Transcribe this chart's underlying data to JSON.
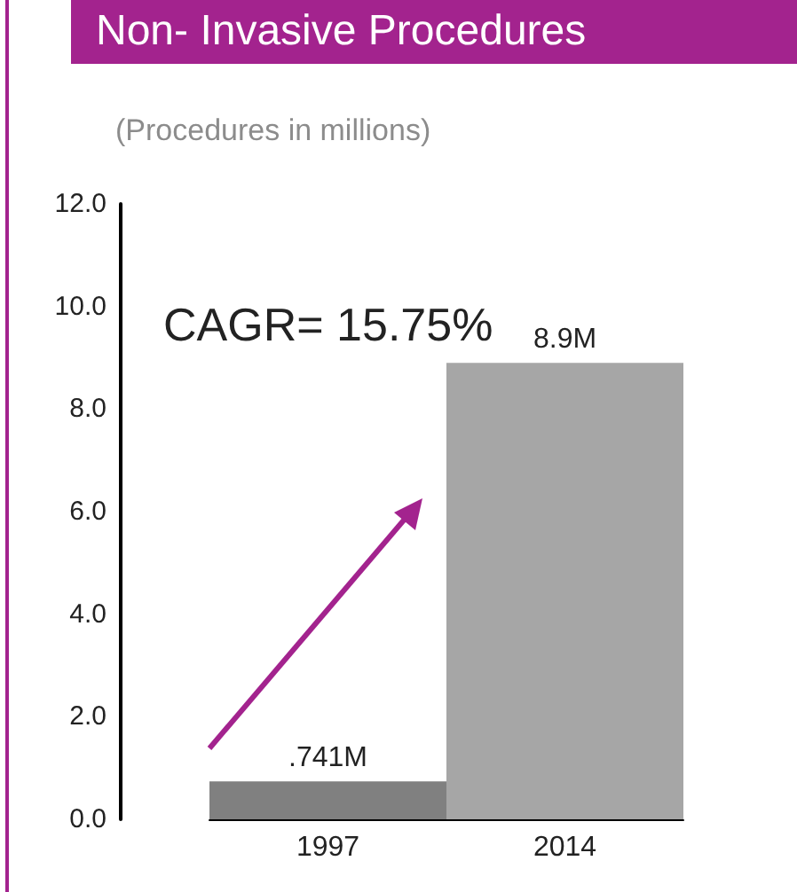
{
  "chart_data": {
    "type": "bar",
    "title": "Non- Invasive Procedures",
    "subtitle": "(Procedures in millions)",
    "annotations": [
      "CAGR= 15.75%"
    ],
    "categories": [
      "1997",
      "2014"
    ],
    "values": [
      0.741,
      8.9
    ],
    "colors": [
      "#808080",
      "#a6a6a6"
    ],
    "value_labels": [
      ".741M",
      "8.9M"
    ],
    "ylim": [
      0,
      12
    ],
    "yticks": [
      {
        "value": 0,
        "label": "0.0"
      },
      {
        "value": 2,
        "label": "2.0"
      },
      {
        "value": 4,
        "label": "4.0"
      },
      {
        "value": 6,
        "label": "6.0"
      },
      {
        "value": 8,
        "label": "8.0"
      },
      {
        "value": 10,
        "label": "10.0"
      },
      {
        "value": 12,
        "label": "12.0"
      }
    ]
  }
}
